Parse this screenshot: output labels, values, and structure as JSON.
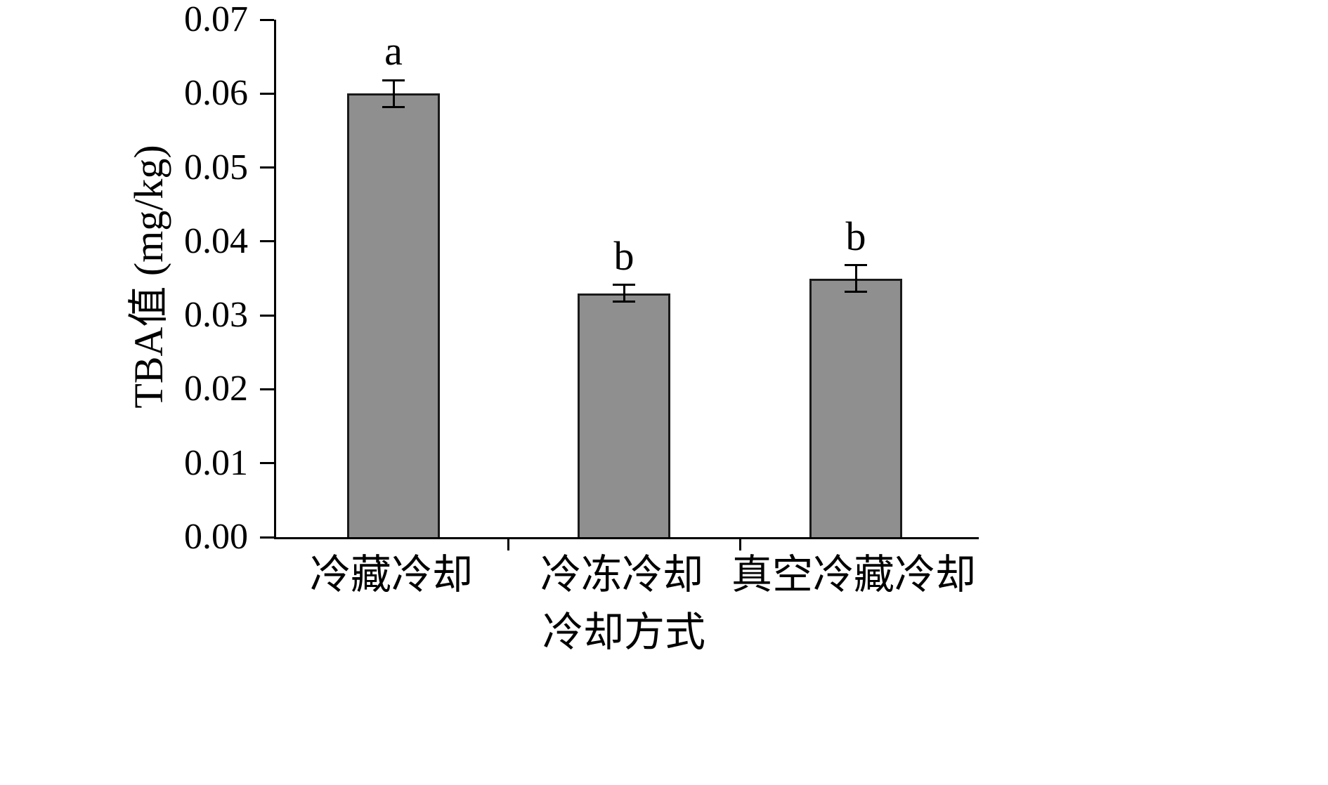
{
  "chart_data": {
    "type": "bar",
    "title": "",
    "ylabel": "TBA值 (mg/kg)",
    "xlabel": "冷却方式",
    "categories": [
      "冷藏冷却",
      "冷冻冷却",
      "真空冷藏冷却"
    ],
    "values": [
      0.06,
      0.033,
      0.035
    ],
    "errors": [
      0.0018,
      0.0011,
      0.0018
    ],
    "sig_letters": [
      "a",
      "b",
      "b"
    ],
    "ylim": [
      0,
      0.07
    ],
    "ytick_step": 0.01,
    "ytick_labels": [
      "0.00",
      "0.01",
      "0.02",
      "0.03",
      "0.04",
      "0.05",
      "0.06",
      "0.07"
    ],
    "bar_color": "#8f8f8f",
    "bar_border_color": "#1a1a1a",
    "grid": false,
    "legend": "none"
  }
}
